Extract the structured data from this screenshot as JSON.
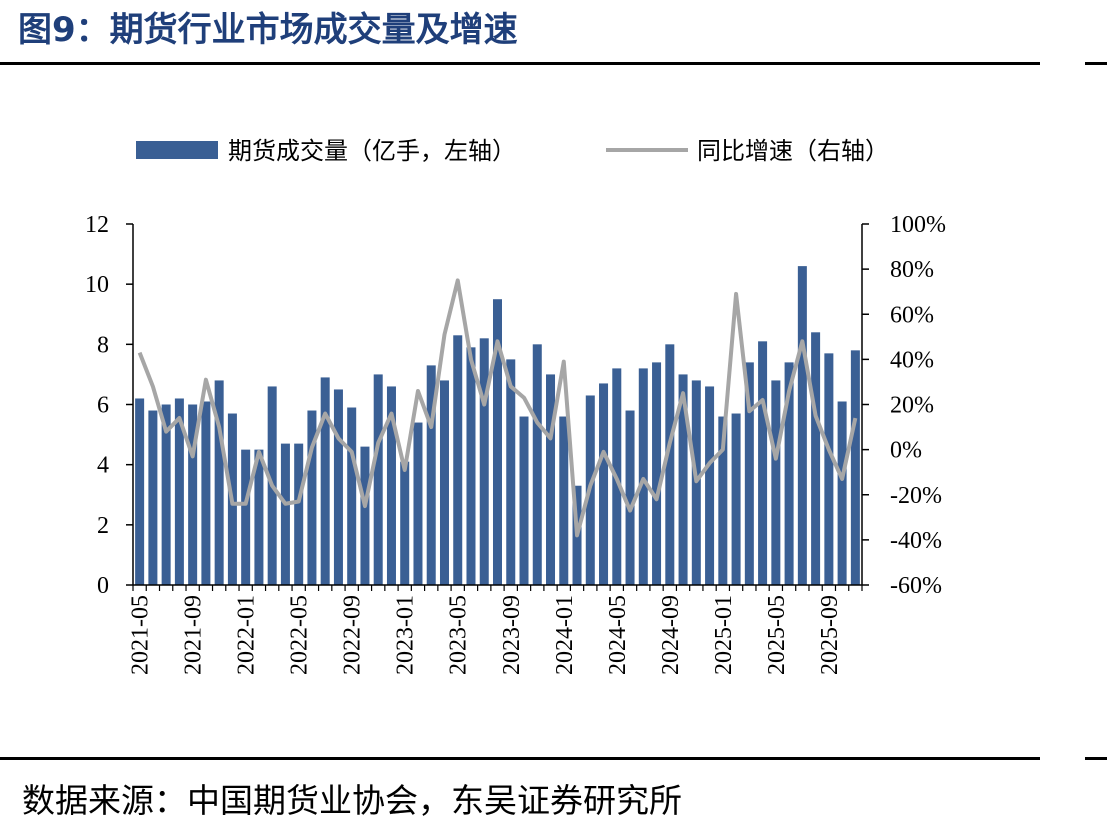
{
  "header": {
    "title": "图9：期货行业市场成交量及增速"
  },
  "footer": {
    "source": "数据来源：中国期货业协会，东吴证券研究所"
  },
  "colors": {
    "bar": "#3a5f94",
    "line": "#a6a6a6",
    "title": "#1f3f7a"
  },
  "chart_data": {
    "type": "bar",
    "legend": {
      "placement": "top",
      "bar_label": "期货成交量（亿手，左轴）",
      "line_label": "同比增速（右轴）"
    },
    "left_axis": {
      "ylim": [
        0,
        12
      ],
      "ticks": [
        "0",
        "2",
        "4",
        "6",
        "8",
        "10",
        "12"
      ]
    },
    "right_axis": {
      "ylim": [
        -60,
        100
      ],
      "ticks": [
        "-60%",
        "-40%",
        "-20%",
        "0%",
        "20%",
        "40%",
        "60%",
        "80%",
        "100%"
      ]
    },
    "x_tick_labels": [
      "2021-05",
      "2021-09",
      "2022-01",
      "2022-05",
      "2022-09",
      "2023-01",
      "2023-05",
      "2023-09",
      "2024-01",
      "2024-05",
      "2024-09",
      "2025-01",
      "2025-05",
      "2025-09"
    ],
    "categories": [
      "2021-05",
      "2021-06",
      "2021-07",
      "2021-08",
      "2021-09",
      "2021-10",
      "2021-11",
      "2021-12",
      "2022-01",
      "2022-02",
      "2022-03",
      "2022-04",
      "2022-05",
      "2022-06",
      "2022-07",
      "2022-08",
      "2022-09",
      "2022-10",
      "2022-11",
      "2022-12",
      "2023-01",
      "2023-02",
      "2023-03",
      "2023-04",
      "2023-05",
      "2023-06",
      "2023-07",
      "2023-08",
      "2023-09",
      "2023-10",
      "2023-11",
      "2023-12",
      "2024-01",
      "2024-02",
      "2024-03",
      "2024-04",
      "2024-05",
      "2024-06",
      "2024-07",
      "2024-08",
      "2024-09",
      "2024-10",
      "2024-11",
      "2024-12",
      "2025-01",
      "2025-02",
      "2025-03",
      "2025-04",
      "2025-05",
      "2025-06",
      "2025-07",
      "2025-08",
      "2025-09",
      "2025-10",
      "2025-11"
    ],
    "series": [
      {
        "name": "期货成交量（亿手，左轴）",
        "axis": "left",
        "type": "bar",
        "values": [
          6.2,
          5.8,
          6.0,
          6.2,
          6.0,
          6.1,
          6.8,
          5.7,
          4.5,
          4.5,
          6.6,
          4.7,
          4.7,
          5.8,
          6.9,
          6.5,
          5.9,
          4.6,
          7.0,
          6.6,
          4.1,
          5.4,
          7.3,
          6.8,
          8.3,
          7.9,
          8.2,
          9.5,
          7.5,
          5.6,
          8.0,
          7.0,
          5.6,
          3.3,
          6.3,
          6.7,
          7.2,
          5.8,
          7.2,
          7.4,
          8.0,
          7.0,
          6.8,
          6.6,
          5.6,
          5.7,
          7.4,
          8.1,
          6.8,
          7.4,
          10.6,
          8.4,
          7.7,
          6.1,
          7.8
        ]
      },
      {
        "name": "同比增速（右轴）",
        "axis": "right",
        "type": "line",
        "values": [
          43,
          28,
          8,
          14,
          -3,
          31,
          10,
          -24,
          -24,
          -1,
          -16,
          -24,
          -23,
          1,
          16,
          5,
          -1,
          -25,
          3,
          16,
          -9,
          26,
          10,
          51,
          75,
          40,
          20,
          48,
          28,
          23,
          12,
          5,
          39,
          -38,
          -16,
          -1,
          -13,
          -27,
          -13,
          -22,
          3,
          25,
          -14,
          -6,
          0,
          69,
          17,
          22,
          -4,
          26,
          48,
          15,
          0,
          -13,
          14
        ]
      }
    ]
  }
}
